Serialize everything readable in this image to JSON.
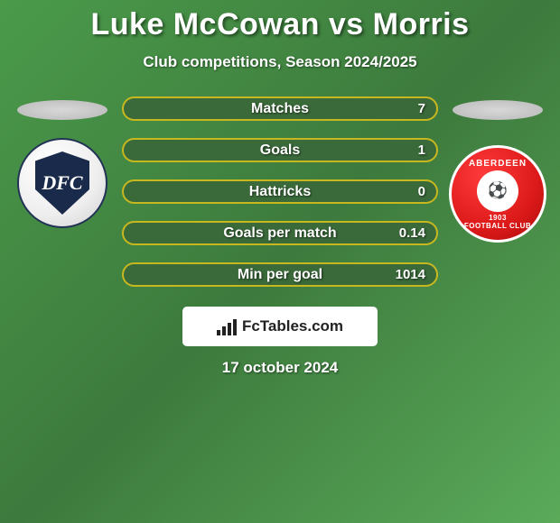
{
  "title": "Luke McCowan vs Morris",
  "subtitle": "Club competitions, Season 2024/2025",
  "left_badge": {
    "letters": "DFC"
  },
  "right_badge": {
    "top": "ABERDEEN",
    "center": "⚽",
    "year": "1903",
    "bottom": "FOOTBALL CLUB"
  },
  "stats": [
    {
      "label": "Matches",
      "value": "7"
    },
    {
      "label": "Goals",
      "value": "1"
    },
    {
      "label": "Hattricks",
      "value": "0"
    },
    {
      "label": "Goals per match",
      "value": "0.14"
    },
    {
      "label": "Min per goal",
      "value": "1014"
    }
  ],
  "brand": "FcTables.com",
  "date": "17 october 2024",
  "colors": {
    "bar_border": "#c8b820",
    "bar_bg": "#3a6a3a",
    "bg_gradient_from": "#4a9a4a",
    "bg_gradient_to": "#3d7a3d"
  }
}
